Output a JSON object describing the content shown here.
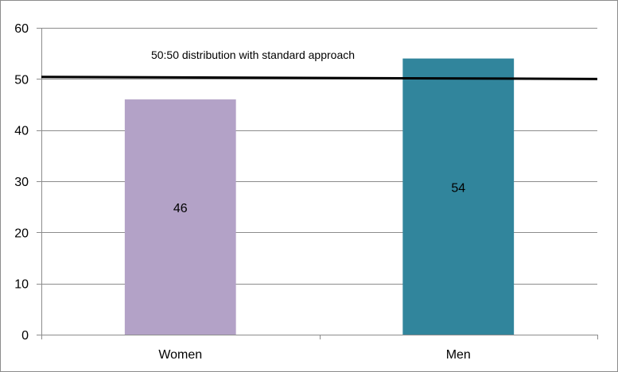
{
  "chart_data": {
    "type": "bar",
    "categories": [
      "Women",
      "Men"
    ],
    "values": [
      46,
      54
    ],
    "data_labels": [
      "46",
      "54"
    ],
    "bar_colors": [
      "#b3a2c7",
      "#31859c"
    ],
    "ylim": [
      0,
      60
    ],
    "yticks": [
      0,
      10,
      20,
      30,
      40,
      50,
      60
    ],
    "ytick_labels": [
      "0",
      "10",
      "20",
      "30",
      "40",
      "50",
      "60"
    ],
    "grid": true,
    "reference_line": {
      "label": "50:50 distribution with standard approach",
      "y_start": 50.4,
      "y_end": 50.0,
      "color": "#000000"
    },
    "title": "",
    "xlabel": "",
    "ylabel": ""
  }
}
